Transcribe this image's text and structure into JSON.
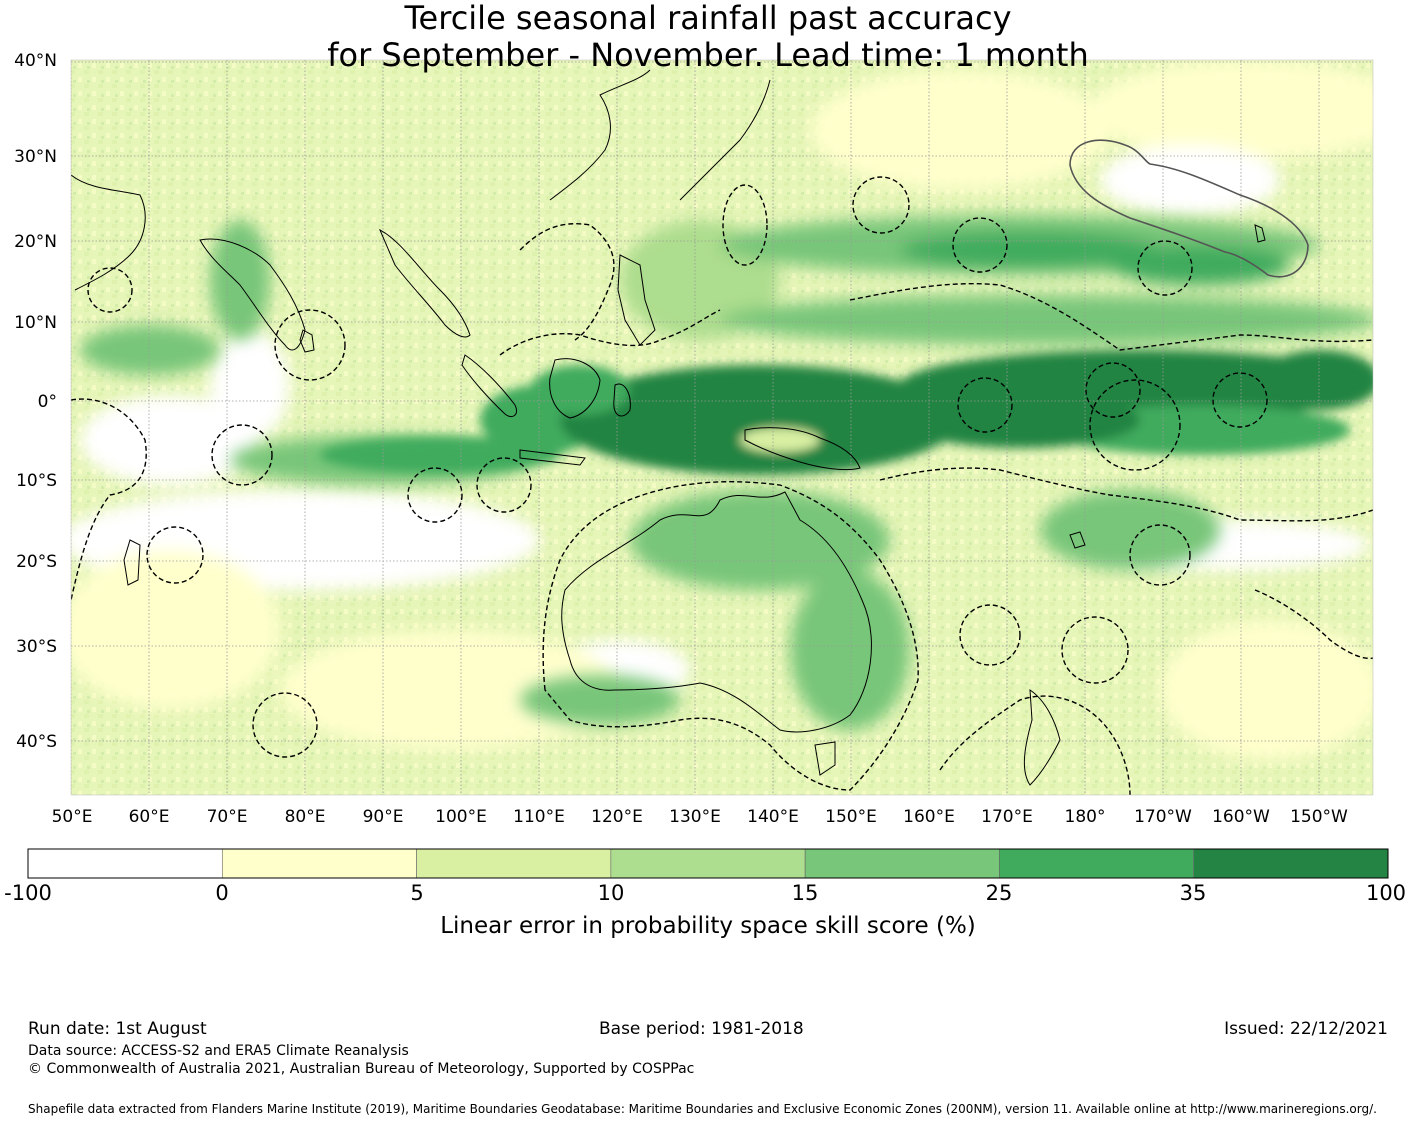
{
  "title": {
    "line1": "Tercile seasonal rainfall past accuracy",
    "line2": "for September - November. Lead time: 1 month"
  },
  "map": {
    "lat_labels": [
      "40°N",
      "30°N",
      "20°N",
      "10°N",
      "0°",
      "10°S",
      "20°S",
      "30°S",
      "40°S"
    ],
    "lon_labels": [
      "50°E",
      "60°E",
      "70°E",
      "80°E",
      "90°E",
      "100°E",
      "110°E",
      "120°E",
      "130°E",
      "140°E",
      "150°E",
      "160°E",
      "170°E",
      "180°",
      "170°W",
      "160°W",
      "150°W"
    ]
  },
  "colorbar": {
    "ticks": [
      "-100",
      "0",
      "5",
      "10",
      "15",
      "25",
      "35",
      "100"
    ],
    "colors": [
      "#ffffff",
      "#ffffcc",
      "#d9f0a3",
      "#addd8e",
      "#78c679",
      "#41ab5d",
      "#238443"
    ],
    "label": "Linear error in probability space skill score (%)"
  },
  "footer": {
    "run_date": "Run date: 1st August",
    "base_period": "Base period: 1981-2018",
    "issued": "Issued: 22/12/2021",
    "data_source": "Data source: ACCESS-S2 and ERA5 Climate Reanalysis",
    "copyright": "© Commonwealth of Australia 2021, Australian Bureau of Meteorology, Supported by COSPPac",
    "shapefile": "Shapefile data extracted from Flanders Marine Institute (2019), Maritime Boundaries Geodatabase: Maritime Boundaries and Exclusive Economic Zones (200NM), version 11. Available online at http://www.marineregions.org/."
  }
}
